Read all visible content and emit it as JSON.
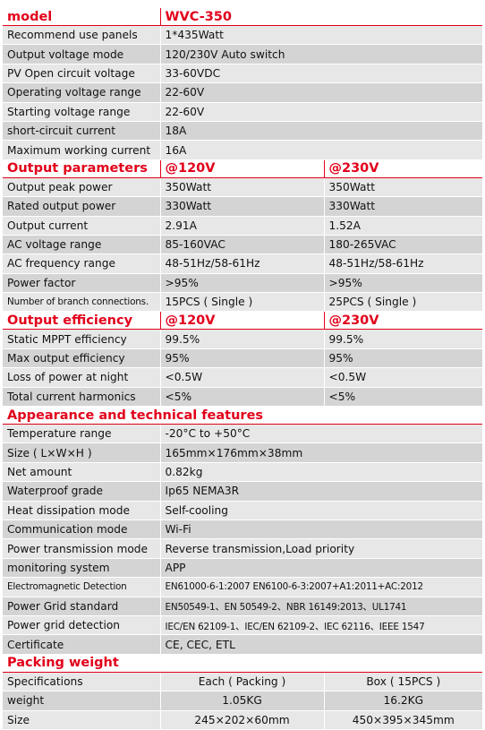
{
  "model": {
    "header": [
      "model",
      "WVC-350"
    ],
    "rows": [
      [
        "Recommend use panels",
        "1*435Watt"
      ],
      [
        "Output voltage mode",
        "120/230V Auto switch"
      ],
      [
        "PV Open circuit voltage",
        "33-60VDC"
      ],
      [
        "Operating voltage range",
        "22-60V"
      ],
      [
        "Starting voltage range",
        "22-60V"
      ],
      [
        "short-circuit current",
        "18A"
      ],
      [
        "Maximum working current",
        "16A"
      ]
    ]
  },
  "output_parameters": {
    "header": [
      "Output parameters",
      "@120V",
      "@230V"
    ],
    "rows": [
      [
        "Output peak power",
        "350Watt",
        "350Watt"
      ],
      [
        "Rated output power",
        "330Watt",
        "330Watt"
      ],
      [
        "Output current",
        "2.91A",
        "1.52A"
      ],
      [
        "AC voltage range",
        "85-160VAC",
        "180-265VAC"
      ],
      [
        "AC frequency range",
        "48-51Hz/58-61Hz",
        "48-51Hz/58-61Hz"
      ],
      [
        "Power factor",
        ">95%",
        ">95%"
      ],
      [
        "Number of branch connections.",
        "15PCS ( Single )",
        "25PCS ( Single )"
      ]
    ]
  },
  "output_efficiency": {
    "header": [
      "Output efficiency",
      "@120V",
      "@230V"
    ],
    "rows": [
      [
        "Static MPPT efficiency",
        "99.5%",
        "99.5%"
      ],
      [
        "Max output efficiency",
        "95%",
        "95%"
      ],
      [
        "Loss of power at night",
        "<0.5W",
        "<0.5W"
      ],
      [
        "Total current harmonics",
        "<5%",
        "<5%"
      ]
    ]
  },
  "appearance": {
    "header": "Appearance and technical features",
    "rows": [
      [
        "Temperature range",
        "-20°C to +50°C"
      ],
      [
        "Size ( L×W×H )",
        "165mm×176mm×38mm"
      ],
      [
        "Net amount",
        "0.82kg"
      ],
      [
        "Waterproof grade",
        "Ip65 NEMA3R"
      ],
      [
        "Heat dissipation mode",
        "Self-cooling"
      ],
      [
        "Communication mode",
        "Wi-Fi"
      ],
      [
        "Power transmission mode",
        "Reverse transmission,Load priority"
      ],
      [
        "monitoring system",
        "APP"
      ],
      [
        "Electromagnetic Detection",
        "EN61000-6-1:2007 EN6100-6-3:2007+A1:2011+AC:2012"
      ],
      [
        "Power Grid standard",
        "EN50549-1、EN 50549-2、NBR 16149:2013、UL1741"
      ],
      [
        "Power grid detection",
        "IEC/EN 62109-1、IEC/EN 62109-2、IEC 62116、IEEE 1547"
      ],
      [
        "Certificate",
        "CE, CEC, ETL"
      ]
    ]
  },
  "packing": {
    "header": "Packing weight",
    "rows": [
      [
        "Specifications",
        "Each ( Packing )",
        "Box ( 15PCS )"
      ],
      [
        "weight",
        "1.05KG",
        "16.2KG"
      ],
      [
        "Size",
        "245×202×60mm",
        "450×395×345mm"
      ]
    ]
  }
}
